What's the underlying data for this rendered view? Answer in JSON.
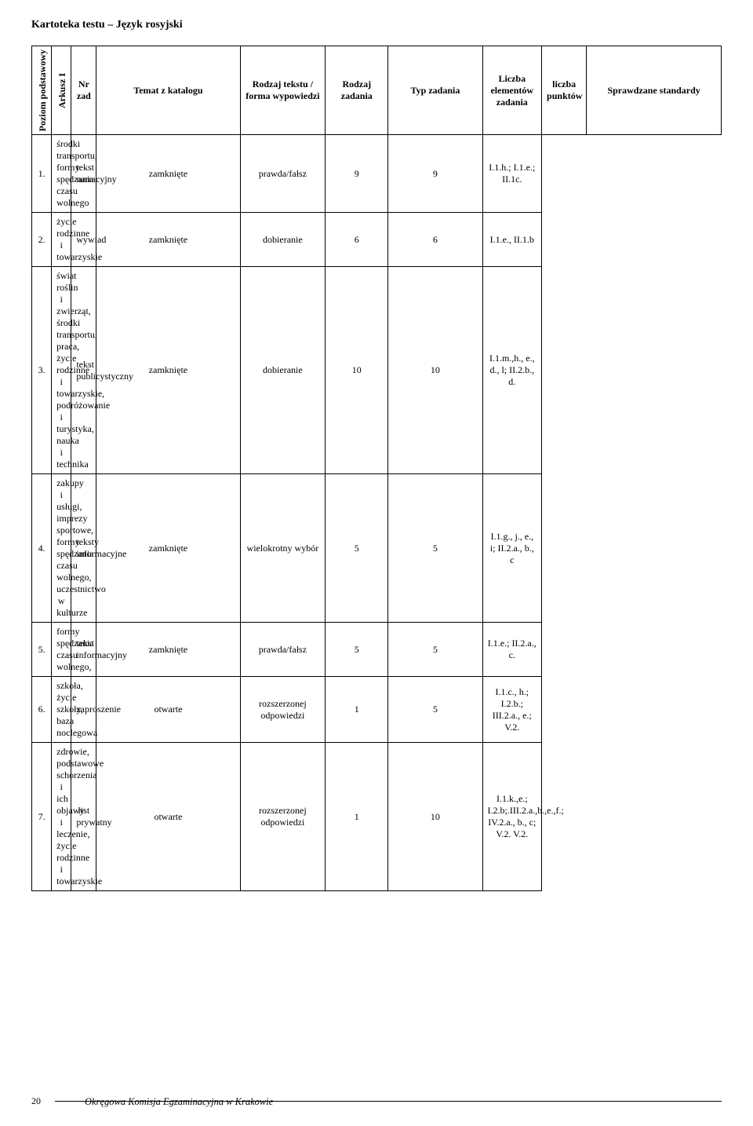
{
  "doc_title": "Kartoteka testu – Język rosyjski",
  "side_labels": {
    "level": "Poziom podstawowy",
    "sheet": "Arkusz  I"
  },
  "columns": {
    "nr": "Nr zad",
    "temat": "Temat z katalogu",
    "forma": "Rodzaj tekstu / forma wypowiedzi",
    "rodzaj": "Rodzaj zadania",
    "typ": "Typ zadania",
    "elem": "Liczba elementów zadania",
    "pkt": "liczba punktów",
    "std": "Sprawdzane standardy"
  },
  "rows": [
    {
      "nr": "1.",
      "temat": "środki transportu, formy spędzania czasu wolnego",
      "forma": "tekst narracyjny",
      "rodzaj": "zamknięte",
      "typ": "prawda/fałsz",
      "elem": "9",
      "pkt": "9",
      "std": "I.1.h.; I.1.e.; II.1c."
    },
    {
      "nr": "2.",
      "temat": "życie rodzinne i towarzyskie",
      "forma": "wywiad",
      "rodzaj": "zamknięte",
      "typ": "dobieranie",
      "elem": "6",
      "pkt": "6",
      "std": "I.1.e., II.1.b"
    },
    {
      "nr": "3.",
      "temat": "świat roślin i zwierząt, środki transportu, praca, życie rodzinne i towarzyskie, podróżowanie i turystyka, nauka i technika",
      "forma": "tekst publicystyczny",
      "rodzaj": "zamknięte",
      "typ": "dobieranie",
      "elem": "10",
      "pkt": "10",
      "std": "I.1.m.,h., e., d., l; II.2.b., d."
    },
    {
      "nr": "4.",
      "temat": "zakupy i usługi, imprezy sportowe, formy spędzania czasu wolnego, uczestnictwo w kulturze",
      "forma": "teksty informacyjne",
      "rodzaj": "zamknięte",
      "typ": "wielokrotny wybór",
      "elem": "5",
      "pkt": "5",
      "std": "I.1.g., j., e., i; II.2.a., b., c"
    },
    {
      "nr": "5.",
      "temat": "formy spędzania czasu wolnego,",
      "forma": "tekst informacyjny",
      "rodzaj": "zamknięte",
      "typ": "prawda/fałsz",
      "elem": "5",
      "pkt": "5",
      "std": "I.1.e.; II.2.a., c."
    },
    {
      "nr": "6.",
      "temat": "szkoła, życie szkoły, baza noclegowa",
      "forma": "zaproszenie",
      "rodzaj": "otwarte",
      "typ": "rozszerzonej odpowiedzi",
      "elem": "1",
      "pkt": "5",
      "std": "I.1.c., h.; I.2.b.; III.2.a., e.; V.2."
    },
    {
      "nr": "7.",
      "temat": "zdrowie, podstawowe schorzenia i ich objawy i leczenie, życie rodzinne i towarzyskie",
      "forma": "list prywatny",
      "rodzaj": "otwarte",
      "typ": "rozszerzonej odpowiedzi",
      "elem": "1",
      "pkt": "10",
      "std": "I.1.k.,e.; I.2.b;.III.2.a.,b.,e.,f.; IV.2.a., b., c; V.2. V.2."
    }
  ],
  "footer": {
    "page": "20",
    "org": "Okręgowa Komisja Egzaminacyjna w Krakowie"
  }
}
